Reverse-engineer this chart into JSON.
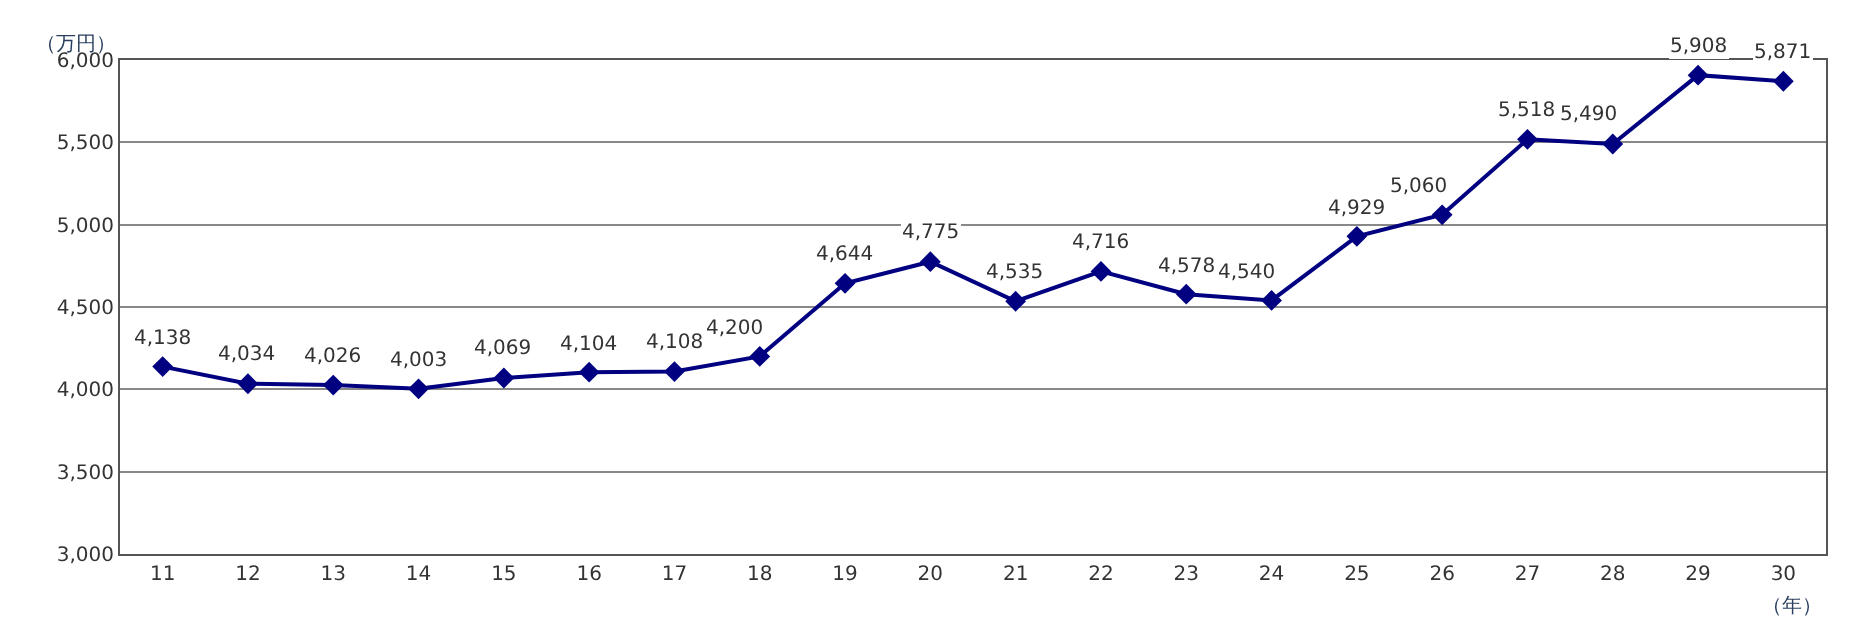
{
  "chart_data": {
    "type": "line",
    "ylabel": "（万円）",
    "xlabel": "（年）",
    "categories": [
      "11",
      "12",
      "13",
      "14",
      "15",
      "16",
      "17",
      "18",
      "19",
      "20",
      "21",
      "22",
      "23",
      "24",
      "25",
      "26",
      "27",
      "28",
      "29",
      "30"
    ],
    "series": [
      {
        "color": "#000080",
        "values": [
          4138,
          4034,
          4026,
          4003,
          4069,
          4104,
          4108,
          4200,
          4644,
          4775,
          4535,
          4716,
          4578,
          4540,
          4929,
          5060,
          5518,
          5490,
          5908,
          5871
        ],
        "value_labels": [
          "4,138",
          "4,034",
          "4,026",
          "4,003",
          "4,069",
          "4,104",
          "4,108",
          "4,200",
          "4,644",
          "4,775",
          "4,535",
          "4,716",
          "4,578",
          "4,540",
          "4,929",
          "5,060",
          "5,518",
          "5,490",
          "5,908",
          "5,871"
        ]
      }
    ],
    "ylim": [
      3000,
      6000
    ],
    "yticks": [
      {
        "value": 3000,
        "label": "3,000"
      },
      {
        "value": 3500,
        "label": "3,500"
      },
      {
        "value": 4000,
        "label": "4,000"
      },
      {
        "value": 4500,
        "label": "4,500"
      },
      {
        "value": 5000,
        "label": "5,000"
      },
      {
        "value": 5500,
        "label": "5,500"
      },
      {
        "value": 6000,
        "label": "6,000"
      }
    ],
    "grid": "y",
    "marker": "diamond",
    "line_style": "solid",
    "legend": false
  }
}
